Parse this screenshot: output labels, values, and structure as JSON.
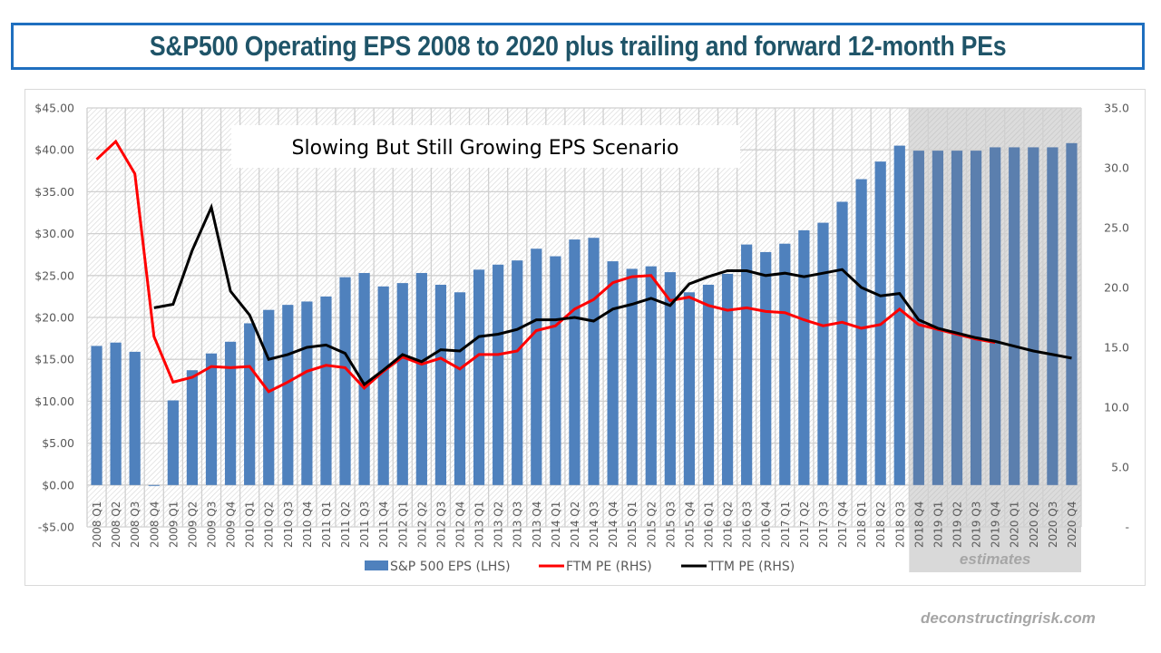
{
  "title": "S&P500 Operating EPS 2008 to 2020 plus trailing and forward 12-month PEs",
  "watermark": "deconstructingrisk.com",
  "chart_data": {
    "type": "bar+line",
    "title": "S&P500 Operating EPS 2008 to 2020 plus trailing and forward 12-month PEs",
    "annotation": "Slowing But Still Growing EPS Scenario",
    "estimates_label": "estimates",
    "estimates_start_category": "2018 Q4",
    "grid": true,
    "legend_position": "bottom",
    "categories": [
      "2008 Q1",
      "2008 Q2",
      "2008 Q3",
      "2008 Q4",
      "2009 Q1",
      "2009 Q2",
      "2009 Q3",
      "2009 Q4",
      "2010 Q1",
      "2010 Q2",
      "2010 Q3",
      "2010 Q4",
      "2011 Q1",
      "2011 Q2",
      "2011 Q3",
      "2011 Q4",
      "2012 Q1",
      "2012 Q2",
      "2012 Q3",
      "2012 Q4",
      "2013 Q1",
      "2013 Q2",
      "2013 Q3",
      "2013 Q4",
      "2014 Q1",
      "2014 Q2",
      "2014 Q3",
      "2014 Q4",
      "2015 Q1",
      "2015 Q2",
      "2015 Q3",
      "2015 Q4",
      "2016 Q1",
      "2016 Q2",
      "2016 Q3",
      "2016 Q4",
      "2017 Q1",
      "2017 Q2",
      "2017 Q3",
      "2017 Q4",
      "2018 Q1",
      "2018 Q2",
      "2018 Q3",
      "2018 Q4",
      "2019 Q1",
      "2019 Q2",
      "2019 Q3",
      "2019 Q4",
      "2020 Q1",
      "2020 Q2",
      "2020 Q3",
      "2020 Q4"
    ],
    "left_axis": {
      "ylim": [
        -5,
        45
      ],
      "ticks": [
        45,
        40,
        35,
        30,
        25,
        20,
        15,
        10,
        5,
        0,
        -5
      ],
      "tick_labels": [
        "$45.00",
        "$40.00",
        "$35.00",
        "$30.00",
        "$25.00",
        "$20.00",
        "$15.00",
        "$10.00",
        "$5.00",
        "$0.00",
        "-$5.00"
      ]
    },
    "right_axis": {
      "ylim": [
        0,
        35
      ],
      "ticks": [
        35,
        30,
        25,
        20,
        15,
        10,
        5,
        0
      ],
      "tick_labels": [
        "35.0",
        "30.0",
        "25.0",
        "20.0",
        "15.0",
        "10.0",
        "5.0",
        "-"
      ]
    },
    "series": [
      {
        "name": "S&P 500 EPS (LHS)",
        "type": "bar",
        "axis": "left",
        "color": "#4f81bd",
        "values": [
          16.6,
          17.0,
          15.9,
          -0.1,
          10.1,
          13.7,
          15.7,
          17.1,
          19.3,
          20.9,
          21.5,
          21.9,
          22.5,
          24.8,
          25.3,
          23.7,
          24.1,
          25.3,
          23.9,
          23.0,
          25.7,
          26.3,
          26.8,
          28.2,
          27.3,
          29.3,
          29.5,
          26.7,
          25.8,
          26.1,
          25.4,
          23.0,
          23.9,
          25.2,
          28.7,
          27.8,
          28.8,
          30.4,
          31.3,
          33.8,
          36.5,
          38.6,
          40.5,
          39.9,
          39.9,
          39.9,
          39.9,
          40.3,
          40.3,
          40.3,
          40.3,
          40.8
        ]
      },
      {
        "name": "FTM PE (RHS)",
        "type": "line",
        "axis": "right",
        "color": "#ff0000",
        "values": [
          30.7,
          32.2,
          29.5,
          15.9,
          12.1,
          12.5,
          13.4,
          13.3,
          13.4,
          11.3,
          12.1,
          13.0,
          13.5,
          13.3,
          11.6,
          13.0,
          14.2,
          13.6,
          14.1,
          13.2,
          14.4,
          14.4,
          14.7,
          16.4,
          16.8,
          18.2,
          19.0,
          20.4,
          20.9,
          21.0,
          18.9,
          19.2,
          18.5,
          18.1,
          18.3,
          18.0,
          17.9,
          17.3,
          16.8,
          17.1,
          16.6,
          16.9,
          18.2,
          16.9,
          16.5,
          16.1,
          15.7,
          15.4
        ]
      },
      {
        "name": "TTM PE (RHS)",
        "type": "line",
        "axis": "right",
        "color": "#000000",
        "values": [
          null,
          null,
          null,
          18.3,
          18.6,
          23.1,
          26.7,
          19.7,
          17.7,
          14.0,
          14.4,
          15.0,
          15.2,
          14.5,
          11.9,
          13.1,
          14.4,
          13.8,
          14.8,
          14.7,
          15.9,
          16.1,
          16.5,
          17.3,
          17.3,
          17.5,
          17.2,
          18.2,
          18.6,
          19.1,
          18.5,
          20.3,
          20.9,
          21.4,
          21.4,
          21.0,
          21.2,
          20.9,
          21.2,
          21.5,
          20.0,
          19.3,
          19.5,
          17.3,
          16.6,
          16.2,
          15.8,
          15.5,
          15.1,
          14.7,
          14.4,
          14.1
        ]
      }
    ]
  }
}
